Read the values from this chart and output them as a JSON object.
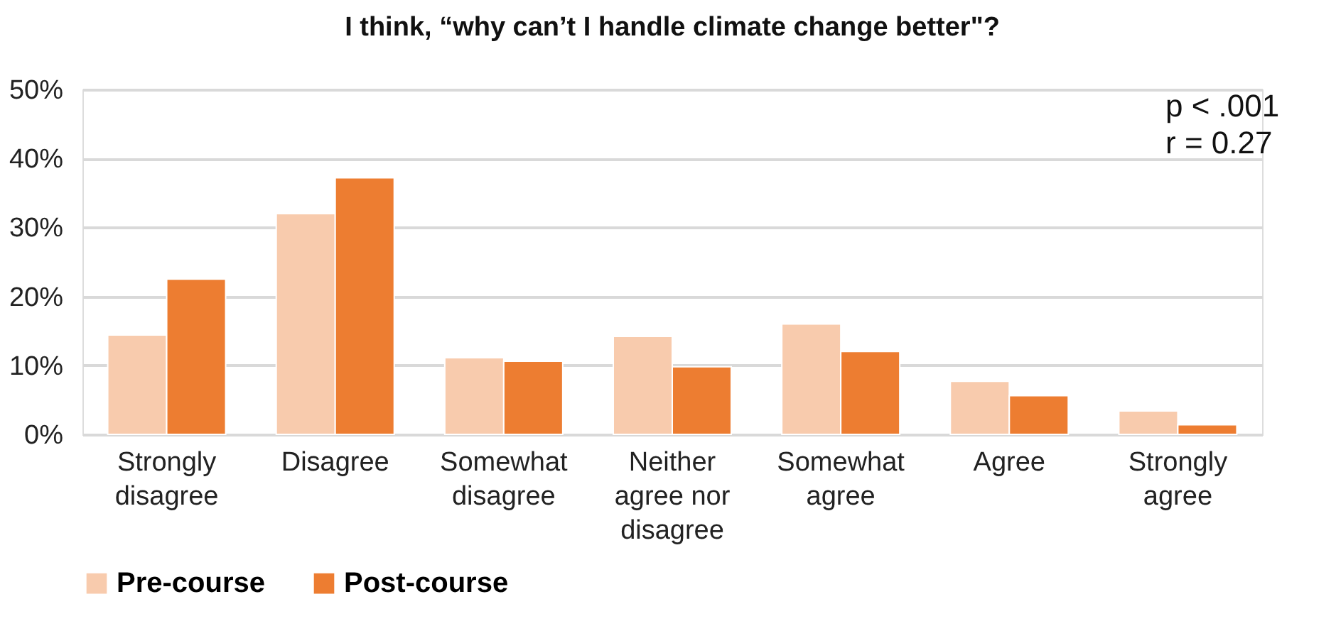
{
  "chart_data": {
    "type": "bar",
    "title": "I think, “why can’t I handle climate change better\"?",
    "categories": [
      "Strongly disagree",
      "Disagree",
      "Somewhat disagree",
      "Neither agree nor disagree",
      "Somewhat agree",
      "Agree",
      "Strongly agree"
    ],
    "series": [
      {
        "name": "Pre-course",
        "color": "#f8cbad",
        "values": [
          14.4,
          32.0,
          11.1,
          14.2,
          16.0,
          7.7,
          3.4
        ]
      },
      {
        "name": "Post-course",
        "color": "#ed7d31",
        "values": [
          22.5,
          37.2,
          10.6,
          9.8,
          12.0,
          5.6,
          1.4
        ]
      }
    ],
    "ylim": [
      0,
      50
    ],
    "yticks": [
      {
        "value": 0,
        "label": "0%"
      },
      {
        "value": 10,
        "label": "10%"
      },
      {
        "value": 20,
        "label": "20%"
      },
      {
        "value": 30,
        "label": "30%"
      },
      {
        "value": 40,
        "label": "40%"
      },
      {
        "value": 50,
        "label": "50%"
      }
    ],
    "grid": "y",
    "legend": "bottom",
    "annotations": [
      "p < .001",
      "r = 0.27"
    ]
  }
}
